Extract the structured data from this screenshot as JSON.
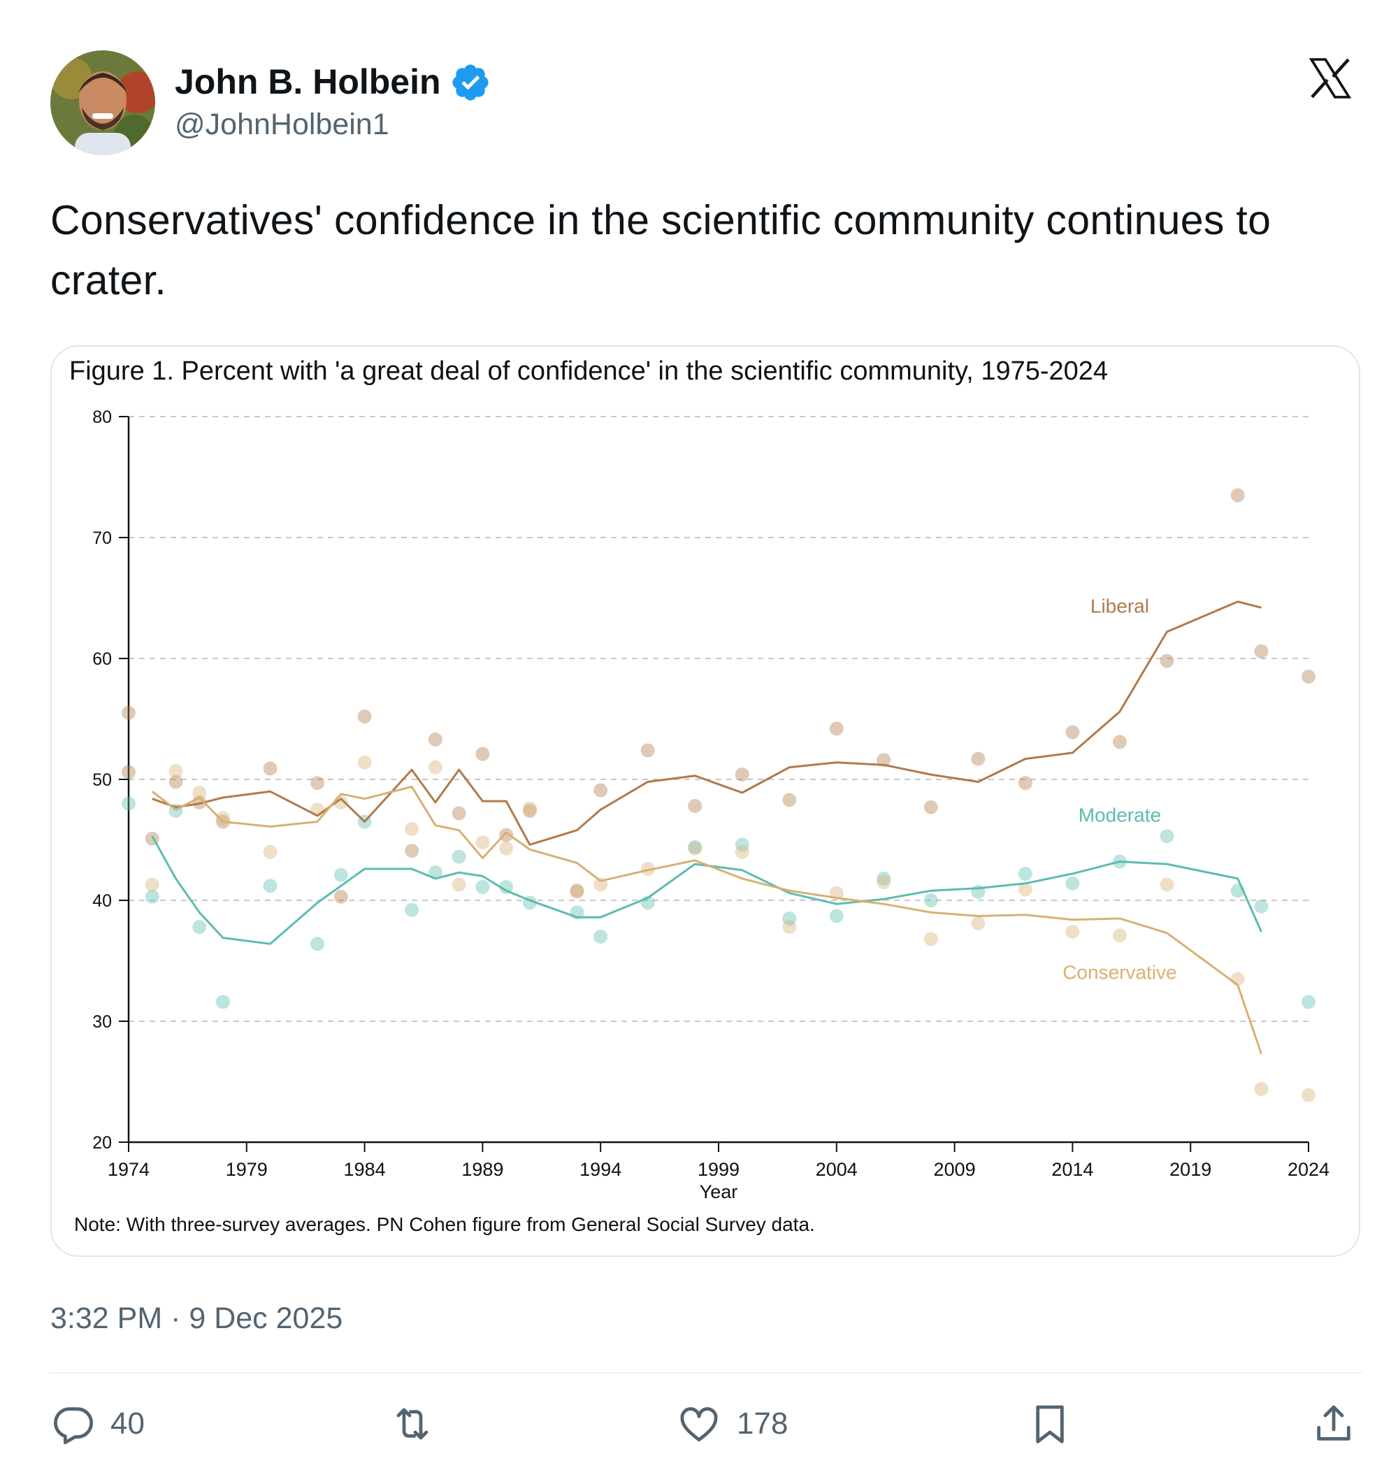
{
  "author": {
    "name": "John B. Holbein",
    "handle": "@JohnHolbein1",
    "verified": true,
    "avatar_icon": "avatar-photo",
    "verified_icon": "verified-badge-icon",
    "verified_color": "#1d9bf0"
  },
  "platform_icon": "x-logo-icon",
  "tweet": {
    "text": "Conservatives' confidence in the scientific community continues to crater."
  },
  "media": {
    "note": "Note: With three-survey averages. PN Cohen figure from General Social Survey data."
  },
  "timestamp": "3:32 PM · 9 Dec 2025",
  "actions": {
    "reply_count": "40",
    "retweet_count": "",
    "like_count": "178",
    "reply_icon": "reply-icon",
    "retweet_icon": "retweet-icon",
    "like_icon": "heart-icon",
    "bookmark_icon": "bookmark-icon",
    "share_icon": "share-icon"
  },
  "colors": {
    "liberal": "#b07a4a",
    "moderate": "#5bbcb0",
    "conservative": "#d8b072",
    "text_secondary": "#536471"
  },
  "chart_data": {
    "type": "line",
    "title": "Figure 1. Percent with 'a great deal of confidence' in the scientific community, 1975-2024",
    "xlabel": "Year",
    "ylabel": "",
    "xlim": [
      1974,
      2024
    ],
    "ylim": [
      20,
      80
    ],
    "xticks": [
      "1974",
      "1979",
      "1984",
      "1989",
      "1994",
      "1999",
      "2004",
      "2009",
      "2014",
      "2019",
      "2024"
    ],
    "yticks": [
      "20",
      "30",
      "40",
      "50",
      "60",
      "70",
      "80"
    ],
    "grid": "horizontal dashed",
    "series": [
      {
        "name": "Liberal",
        "color": "#b07a4a",
        "line": [
          [
            1975,
            48.4
          ],
          [
            1976,
            47.7
          ],
          [
            1977,
            48.0
          ],
          [
            1978,
            48.5
          ],
          [
            1980,
            49.0
          ],
          [
            1982,
            47.0
          ],
          [
            1983,
            48.4
          ],
          [
            1984,
            46.5
          ],
          [
            1986,
            50.8
          ],
          [
            1987,
            48.1
          ],
          [
            1988,
            50.8
          ],
          [
            1989,
            48.2
          ],
          [
            1990,
            48.2
          ],
          [
            1991,
            44.6
          ],
          [
            1993,
            45.8
          ],
          [
            1994,
            47.5
          ],
          [
            1996,
            49.8
          ],
          [
            1998,
            50.3
          ],
          [
            2000,
            48.9
          ],
          [
            2002,
            51.0
          ],
          [
            2004,
            51.4
          ],
          [
            2006,
            51.2
          ],
          [
            2008,
            50.4
          ],
          [
            2010,
            49.8
          ],
          [
            2012,
            51.7
          ],
          [
            2014,
            52.2
          ],
          [
            2016,
            55.6
          ],
          [
            2018,
            62.2
          ],
          [
            2021,
            64.7
          ],
          [
            2022,
            64.2
          ]
        ],
        "points": [
          [
            1974,
            55.5
          ],
          [
            1974,
            50.6
          ],
          [
            1975,
            45.1
          ],
          [
            1976,
            49.8
          ],
          [
            1977,
            48.1
          ],
          [
            1978,
            46.5
          ],
          [
            1980,
            50.9
          ],
          [
            1982,
            49.7
          ],
          [
            1983,
            40.3
          ],
          [
            1984,
            55.2
          ],
          [
            1986,
            44.1
          ],
          [
            1987,
            53.3
          ],
          [
            1988,
            47.2
          ],
          [
            1989,
            52.1
          ],
          [
            1990,
            45.4
          ],
          [
            1991,
            47.4
          ],
          [
            1993,
            40.8
          ],
          [
            1994,
            49.1
          ],
          [
            1996,
            52.4
          ],
          [
            1998,
            47.8
          ],
          [
            2000,
            50.4
          ],
          [
            2002,
            48.3
          ],
          [
            2004,
            54.2
          ],
          [
            2006,
            51.6
          ],
          [
            2008,
            47.7
          ],
          [
            2010,
            51.7
          ],
          [
            2012,
            49.7
          ],
          [
            2014,
            53.9
          ],
          [
            2016,
            53.1
          ],
          [
            2018,
            59.8
          ],
          [
            2021,
            73.5
          ],
          [
            2022,
            60.6
          ],
          [
            2024,
            58.5
          ]
        ]
      },
      {
        "name": "Moderate",
        "color": "#5bbcb0",
        "line": [
          [
            1975,
            45.3
          ],
          [
            1976,
            41.8
          ],
          [
            1977,
            39.0
          ],
          [
            1978,
            36.9
          ],
          [
            1980,
            36.4
          ],
          [
            1982,
            39.8
          ],
          [
            1984,
            42.6
          ],
          [
            1986,
            42.6
          ],
          [
            1987,
            41.8
          ],
          [
            1988,
            42.3
          ],
          [
            1989,
            42.0
          ],
          [
            1990,
            40.8
          ],
          [
            1991,
            40.0
          ],
          [
            1993,
            38.6
          ],
          [
            1994,
            38.6
          ],
          [
            1996,
            40.2
          ],
          [
            1998,
            43.0
          ],
          [
            2000,
            42.5
          ],
          [
            2002,
            40.6
          ],
          [
            2004,
            39.7
          ],
          [
            2006,
            40.1
          ],
          [
            2008,
            40.8
          ],
          [
            2010,
            41.0
          ],
          [
            2012,
            41.4
          ],
          [
            2014,
            42.2
          ],
          [
            2016,
            43.2
          ],
          [
            2018,
            43.0
          ],
          [
            2021,
            41.8
          ],
          [
            2022,
            37.4
          ]
        ],
        "points": [
          [
            1974,
            48.0
          ],
          [
            1975,
            40.3
          ],
          [
            1976,
            47.4
          ],
          [
            1977,
            37.8
          ],
          [
            1978,
            31.6
          ],
          [
            1980,
            41.2
          ],
          [
            1982,
            36.4
          ],
          [
            1983,
            42.1
          ],
          [
            1984,
            46.5
          ],
          [
            1986,
            39.2
          ],
          [
            1987,
            42.3
          ],
          [
            1988,
            43.6
          ],
          [
            1989,
            41.1
          ],
          [
            1990,
            41.1
          ],
          [
            1991,
            39.8
          ],
          [
            1993,
            39.0
          ],
          [
            1994,
            37.0
          ],
          [
            1996,
            39.8
          ],
          [
            1998,
            44.4
          ],
          [
            2000,
            44.6
          ],
          [
            2002,
            38.5
          ],
          [
            2004,
            38.7
          ],
          [
            2006,
            41.8
          ],
          [
            2008,
            40.0
          ],
          [
            2010,
            40.7
          ],
          [
            2012,
            42.2
          ],
          [
            2014,
            41.4
          ],
          [
            2016,
            43.2
          ],
          [
            2018,
            45.3
          ],
          [
            2021,
            40.8
          ],
          [
            2022,
            39.5
          ],
          [
            2024,
            31.6
          ]
        ]
      },
      {
        "name": "Conservative",
        "color": "#d8b072",
        "line": [
          [
            1975,
            49.0
          ],
          [
            1976,
            47.5
          ],
          [
            1977,
            48.5
          ],
          [
            1978,
            46.5
          ],
          [
            1980,
            46.1
          ],
          [
            1982,
            46.5
          ],
          [
            1983,
            48.8
          ],
          [
            1984,
            48.4
          ],
          [
            1986,
            49.4
          ],
          [
            1987,
            46.2
          ],
          [
            1988,
            45.8
          ],
          [
            1989,
            43.5
          ],
          [
            1990,
            45.6
          ],
          [
            1991,
            44.2
          ],
          [
            1993,
            43.1
          ],
          [
            1994,
            41.6
          ],
          [
            1996,
            42.5
          ],
          [
            1998,
            43.3
          ],
          [
            2000,
            41.8
          ],
          [
            2002,
            40.8
          ],
          [
            2004,
            40.2
          ],
          [
            2006,
            39.7
          ],
          [
            2008,
            39.0
          ],
          [
            2010,
            38.7
          ],
          [
            2012,
            38.8
          ],
          [
            2014,
            38.4
          ],
          [
            2016,
            38.5
          ],
          [
            2018,
            37.3
          ],
          [
            2021,
            33.0
          ],
          [
            2022,
            27.3
          ]
        ],
        "points": [
          [
            1975,
            41.3
          ],
          [
            1976,
            50.7
          ],
          [
            1977,
            48.9
          ],
          [
            1978,
            46.8
          ],
          [
            1980,
            44.0
          ],
          [
            1982,
            47.5
          ],
          [
            1983,
            48.1
          ],
          [
            1984,
            51.4
          ],
          [
            1986,
            45.9
          ],
          [
            1987,
            51.0
          ],
          [
            1988,
            41.3
          ],
          [
            1989,
            44.8
          ],
          [
            1990,
            44.3
          ],
          [
            1991,
            47.6
          ],
          [
            1993,
            40.7
          ],
          [
            1994,
            41.3
          ],
          [
            1996,
            42.6
          ],
          [
            1998,
            44.3
          ],
          [
            2000,
            44.0
          ],
          [
            2002,
            37.8
          ],
          [
            2004,
            40.6
          ],
          [
            2006,
            41.5
          ],
          [
            2008,
            36.8
          ],
          [
            2010,
            38.1
          ],
          [
            2012,
            40.9
          ],
          [
            2014,
            37.4
          ],
          [
            2016,
            37.1
          ],
          [
            2018,
            41.3
          ],
          [
            2021,
            33.5
          ],
          [
            2022,
            24.4
          ],
          [
            2024,
            23.9
          ]
        ]
      }
    ],
    "annotations": [
      {
        "text": "Liberal",
        "series": "Liberal"
      },
      {
        "text": "Moderate",
        "series": "Moderate"
      },
      {
        "text": "Conservative",
        "series": "Conservative"
      }
    ]
  }
}
